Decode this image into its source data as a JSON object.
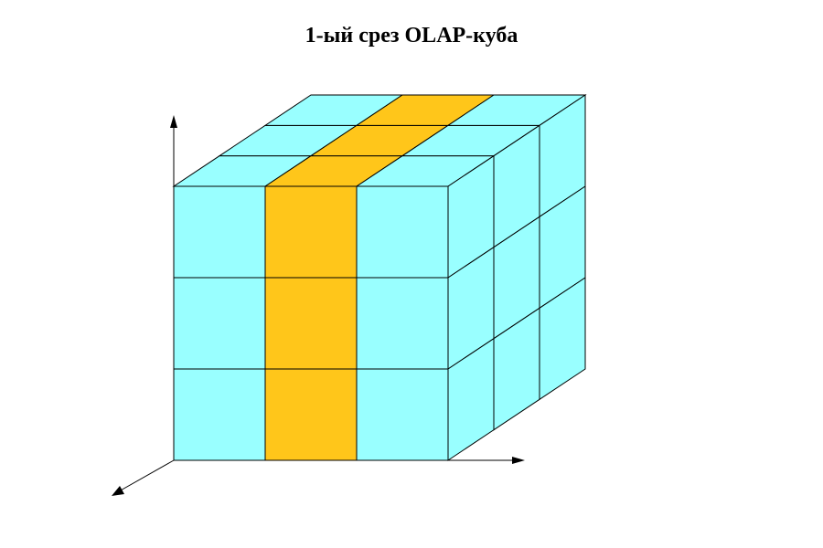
{
  "title": "1-ый срез OLAP-куба",
  "cube": {
    "grid_size": 3,
    "slice_dimension": "x",
    "slice_index": 1,
    "colors": {
      "cell": "#99FFFF",
      "slice": "#FFC61A",
      "line": "#000000",
      "background": "#FFFFFF"
    }
  },
  "axes": {
    "names": [
      "vertical-axis",
      "horizontal-axis",
      "depth-axis"
    ]
  }
}
